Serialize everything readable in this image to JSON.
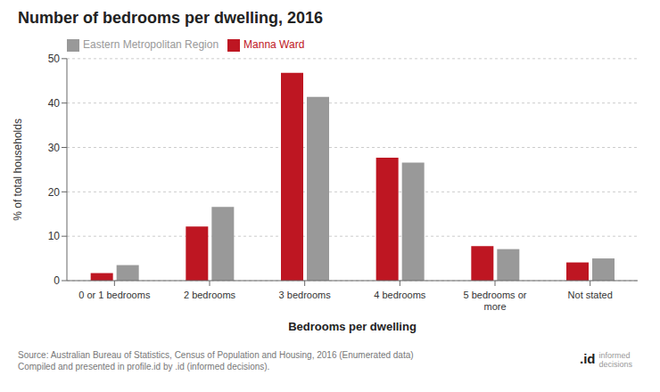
{
  "chart_data": {
    "type": "bar",
    "title": "Number of bedrooms per dwelling, 2016",
    "categories": [
      "0 or 1 bedrooms",
      "2 bedrooms",
      "3 bedrooms",
      "4 bedrooms",
      "5 bedrooms or\nmore",
      "Not stated"
    ],
    "series": [
      {
        "name": "Manna Ward",
        "color": "#be1622",
        "values": [
          1.7,
          12.2,
          46.8,
          27.7,
          7.8,
          4.1
        ]
      },
      {
        "name": "Eastern Metropolitan Region",
        "color": "#999999",
        "values": [
          3.5,
          16.6,
          41.4,
          26.6,
          7.1,
          5.0
        ]
      }
    ],
    "ylabel": "% of total households",
    "xlabel": "Bedrooms per dwelling",
    "ylim": [
      0,
      50
    ],
    "yticks": [
      0,
      10,
      20,
      30,
      40,
      50
    ],
    "grid": true,
    "legend": "upper left",
    "annotations": [
      "Source: Australian Bureau of Statistics, Census of Population and Housing, 2016 (Enumerated data)\nCompiled and presented in profile.id by .id (informed decisions).",
      ".id",
      "informed\ndecisions"
    ]
  }
}
